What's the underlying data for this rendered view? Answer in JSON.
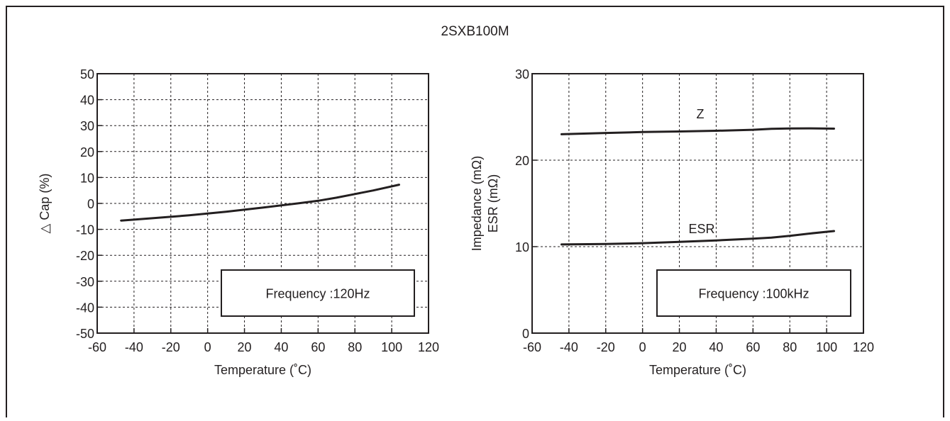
{
  "title": "2SXB100M",
  "colors": {
    "ink": "#231f20",
    "background": "#ffffff"
  },
  "chart_data": [
    {
      "type": "line",
      "xlabel": "Temperature  (˚C)",
      "ylabel": "△ Cap (%)",
      "xlim": [
        -60,
        120
      ],
      "ylim": [
        -50,
        50
      ],
      "xticks": [
        "-60",
        "-40",
        "-20",
        "0",
        "20",
        "40",
        "60",
        "80",
        "100",
        "120"
      ],
      "yticks": [
        "50",
        "40",
        "30",
        "20",
        "10",
        "0",
        "-10",
        "-20",
        "-30",
        "-40",
        "-50"
      ],
      "grid": true,
      "annotation": "Frequency :120Hz",
      "series": [
        {
          "x": [
            -47,
            -30,
            -10,
            10,
            30,
            50,
            60,
            70,
            80,
            90,
            104
          ],
          "y": [
            -6.6,
            -5.7,
            -4.6,
            -3.2,
            -1.6,
            0.1,
            1.0,
            2.2,
            3.6,
            5.0,
            7.2
          ]
        }
      ]
    },
    {
      "type": "line",
      "xlabel": "Temperature  (˚C)",
      "ylabel": "Impedance (mΩ)",
      "ylabel2": "ESR (mΩ)",
      "xlim": [
        -60,
        120
      ],
      "ylim": [
        0,
        30
      ],
      "xticks": [
        "-60",
        "-40",
        "-20",
        "0",
        "20",
        "40",
        "60",
        "80",
        "100",
        "120"
      ],
      "yticks": [
        "30",
        "20",
        "10",
        "0"
      ],
      "grid": true,
      "annotation": "Frequency :100kHz",
      "series": [
        {
          "name": "Z",
          "x": [
            -44,
            -20,
            0,
            20,
            40,
            60,
            70,
            80,
            90,
            104
          ],
          "y": [
            23.0,
            23.15,
            23.25,
            23.32,
            23.4,
            23.52,
            23.62,
            23.67,
            23.68,
            23.65
          ]
        },
        {
          "name": "ESR",
          "x": [
            -44,
            -20,
            0,
            20,
            40,
            60,
            70,
            80,
            90,
            104
          ],
          "y": [
            10.25,
            10.3,
            10.4,
            10.55,
            10.72,
            10.92,
            11.05,
            11.25,
            11.5,
            11.8
          ]
        }
      ]
    }
  ]
}
